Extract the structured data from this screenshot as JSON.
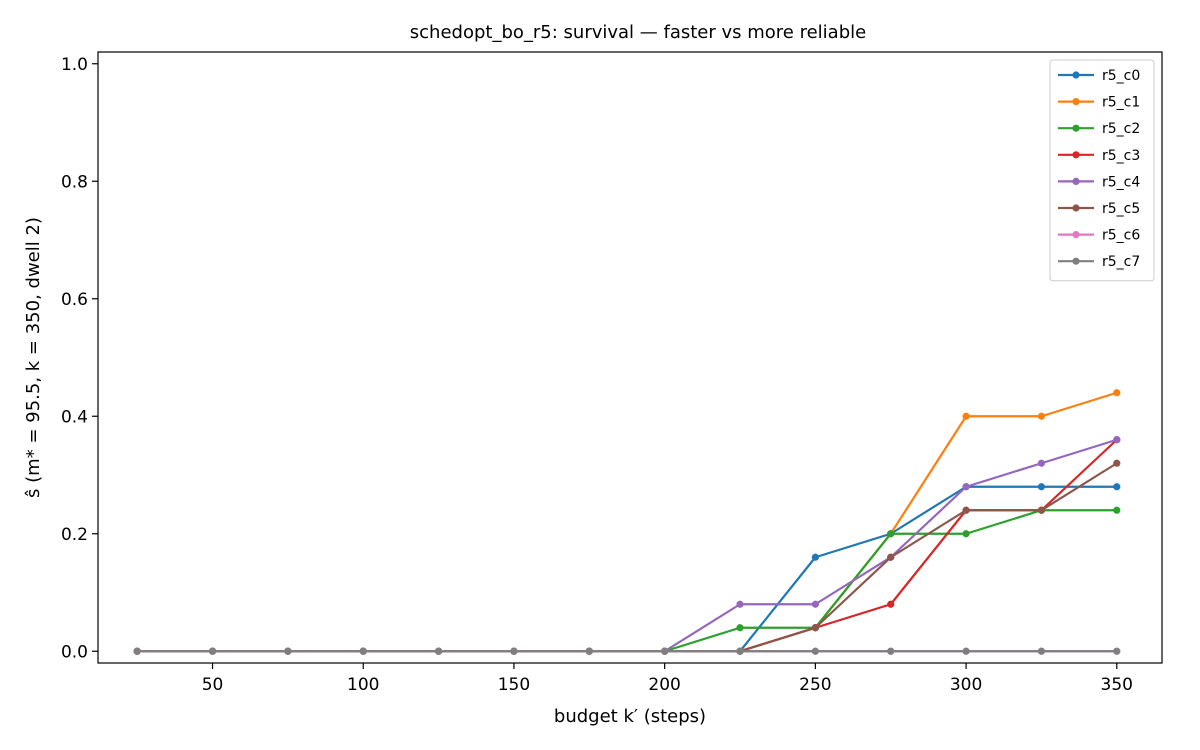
{
  "chart_data": {
    "type": "line",
    "title": "schedopt_bo_r5: survival — faster vs more reliable",
    "xlabel": "budget k′ (steps)",
    "ylabel": "ŝ (m* = 95.5, k = 350, dwell 2)",
    "xlim": [
      12,
      365
    ],
    "ylim": [
      -0.02,
      1.02
    ],
    "xticks": [
      50,
      100,
      150,
      200,
      250,
      300,
      350
    ],
    "yticks": [
      0.0,
      0.2,
      0.4,
      0.6,
      0.8,
      1.0
    ],
    "ytick_labels": [
      "0.0",
      "0.2",
      "0.4",
      "0.6",
      "0.8",
      "1.0"
    ],
    "legend_position": "top-right",
    "x": [
      25,
      50,
      75,
      100,
      125,
      150,
      175,
      200,
      225,
      250,
      275,
      300,
      325,
      350
    ],
    "series": [
      {
        "name": "r5_c0",
        "color": "#1f77b4",
        "values": [
          0,
          0,
          0,
          0,
          0,
          0,
          0,
          0,
          0,
          0.16,
          0.2,
          0.28,
          0.28,
          0.28
        ]
      },
      {
        "name": "r5_c1",
        "color": "#ff7f0e",
        "values": [
          0,
          0,
          0,
          0,
          0,
          0,
          0,
          0,
          0,
          0.04,
          0.2,
          0.4,
          0.4,
          0.44
        ]
      },
      {
        "name": "r5_c2",
        "color": "#2ca02c",
        "values": [
          0,
          0,
          0,
          0,
          0,
          0,
          0,
          0,
          0.04,
          0.04,
          0.2,
          0.2,
          0.24,
          0.24
        ]
      },
      {
        "name": "r5_c3",
        "color": "#d62728",
        "values": [
          0,
          0,
          0,
          0,
          0,
          0,
          0,
          0,
          0,
          0.04,
          0.08,
          0.24,
          0.24,
          0.36
        ]
      },
      {
        "name": "r5_c4",
        "color": "#9467bd",
        "values": [
          0,
          0,
          0,
          0,
          0,
          0,
          0,
          0,
          0.08,
          0.08,
          0.16,
          0.28,
          0.32,
          0.36
        ]
      },
      {
        "name": "r5_c5",
        "color": "#8c564b",
        "values": [
          0,
          0,
          0,
          0,
          0,
          0,
          0,
          0,
          0,
          0.04,
          0.16,
          0.24,
          0.24,
          0.32
        ]
      },
      {
        "name": "r5_c6",
        "color": "#e377c2",
        "values": [
          0,
          0,
          0,
          0,
          0,
          0,
          0,
          0,
          0,
          0,
          0,
          0,
          0,
          0
        ]
      },
      {
        "name": "r5_c7",
        "color": "#7f7f7f",
        "values": [
          0,
          0,
          0,
          0,
          0,
          0,
          0,
          0,
          0,
          0,
          0,
          0,
          0,
          0
        ]
      }
    ]
  }
}
